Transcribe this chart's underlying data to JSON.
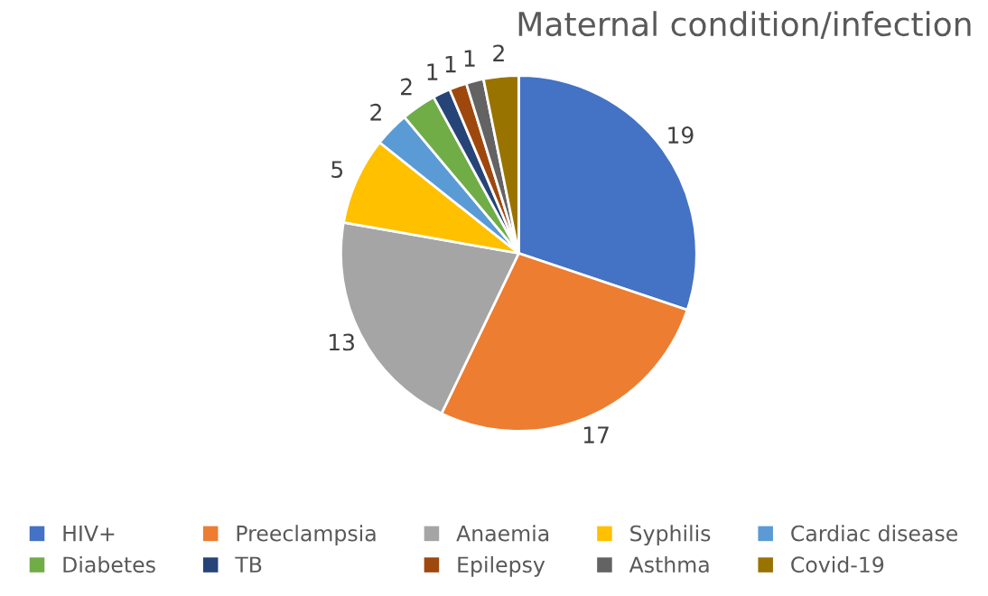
{
  "chart_data": {
    "type": "pie",
    "title": "Maternal condition/infection",
    "categories": [
      "HIV+",
      "Preeclampsia",
      "Anaemia",
      "Syphilis",
      "Cardiac disease",
      "Diabetes",
      "TB",
      "Epilepsy",
      "Asthma",
      "Covid-19"
    ],
    "values": [
      19,
      17,
      13,
      5,
      2,
      2,
      1,
      1,
      1,
      2
    ],
    "colors": [
      "#4472c4",
      "#ed7d31",
      "#a5a5a5",
      "#ffc000",
      "#5b9bd5",
      "#70ad47",
      "#264478",
      "#9e480e",
      "#636363",
      "#997300"
    ],
    "data_labels": true,
    "legend": "bottom"
  }
}
